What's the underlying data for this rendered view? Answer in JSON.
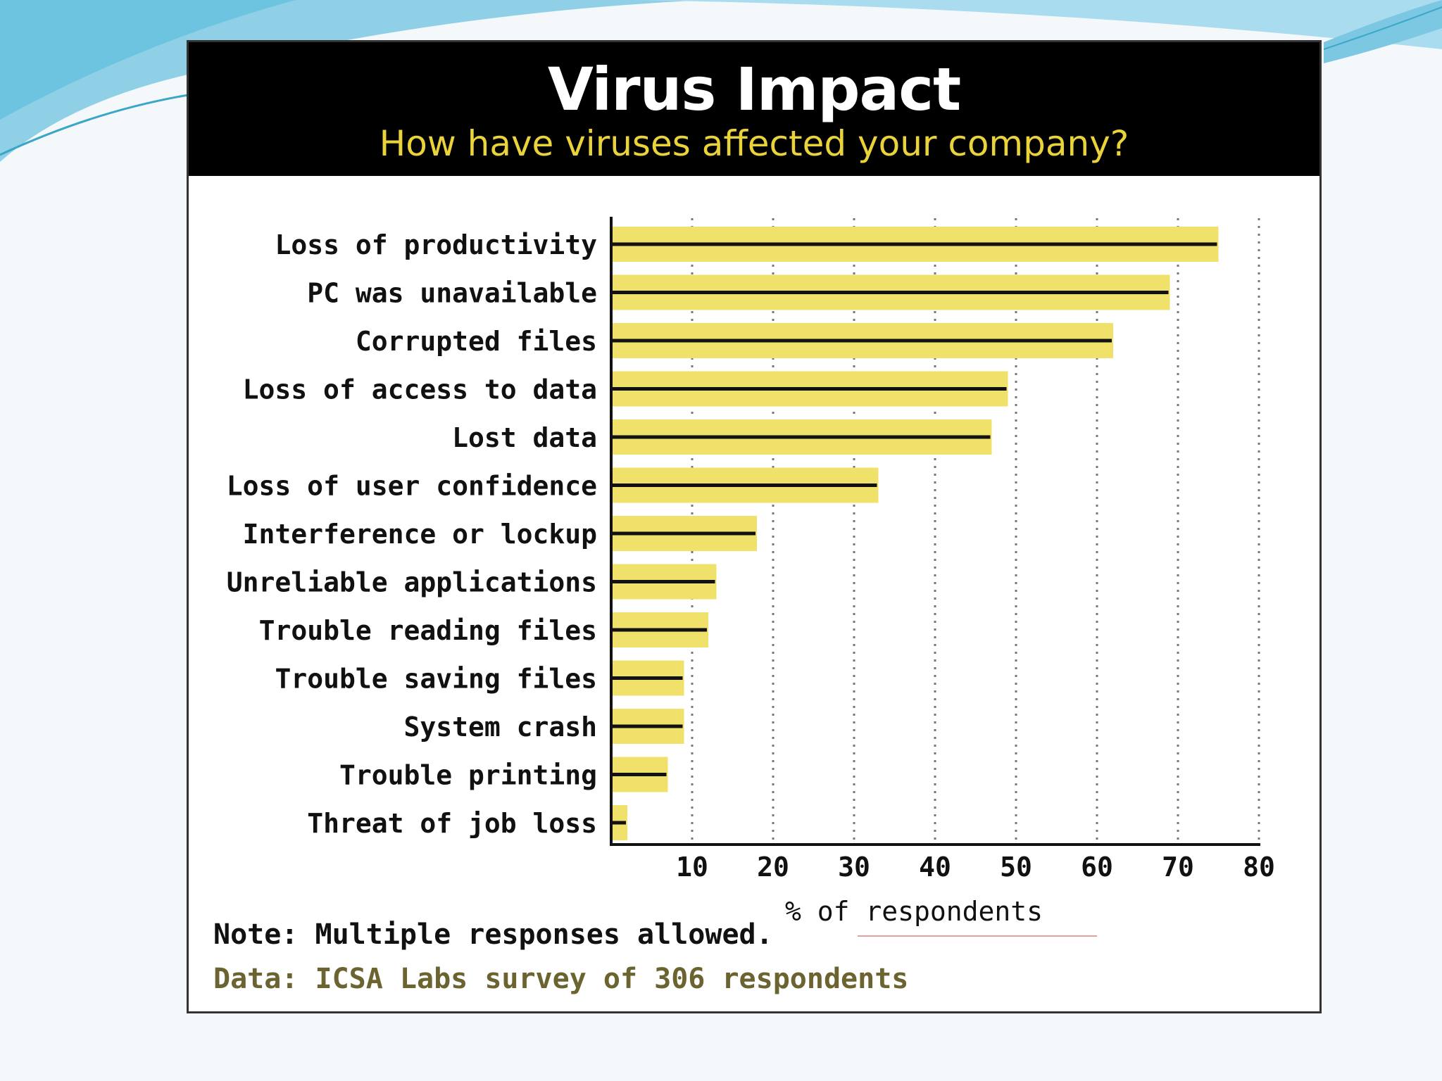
{
  "chart_data": {
    "type": "bar",
    "orientation": "horizontal",
    "title": "Virus Impact",
    "subtitle": "How have viruses affected your company?",
    "categories": [
      "Loss of productivity",
      "PC was unavailable",
      "Corrupted files",
      "Loss of access to data",
      "Lost data",
      "Loss of user confidence",
      "Interference or lockup",
      "Unreliable applications",
      "Trouble reading files",
      "Trouble saving files",
      "System crash",
      "Trouble printing",
      "Threat of job loss"
    ],
    "values": [
      75,
      69,
      62,
      49,
      47,
      33,
      18,
      13,
      12,
      9,
      9,
      7,
      2
    ],
    "xlabel": "% of respondents",
    "ylabel": "",
    "xlim": [
      0,
      80
    ],
    "xticks": [
      10,
      20,
      30,
      40,
      50,
      60,
      70,
      80
    ],
    "grid": "vertical dotted",
    "note": "Note: Multiple responses allowed.",
    "source": "Data: ICSA Labs survey of 306 respondents",
    "colors": {
      "bar": "#f0e16a",
      "bar_line": "#111111",
      "header_bg": "#000000",
      "subtitle": "#e9d23a"
    }
  }
}
